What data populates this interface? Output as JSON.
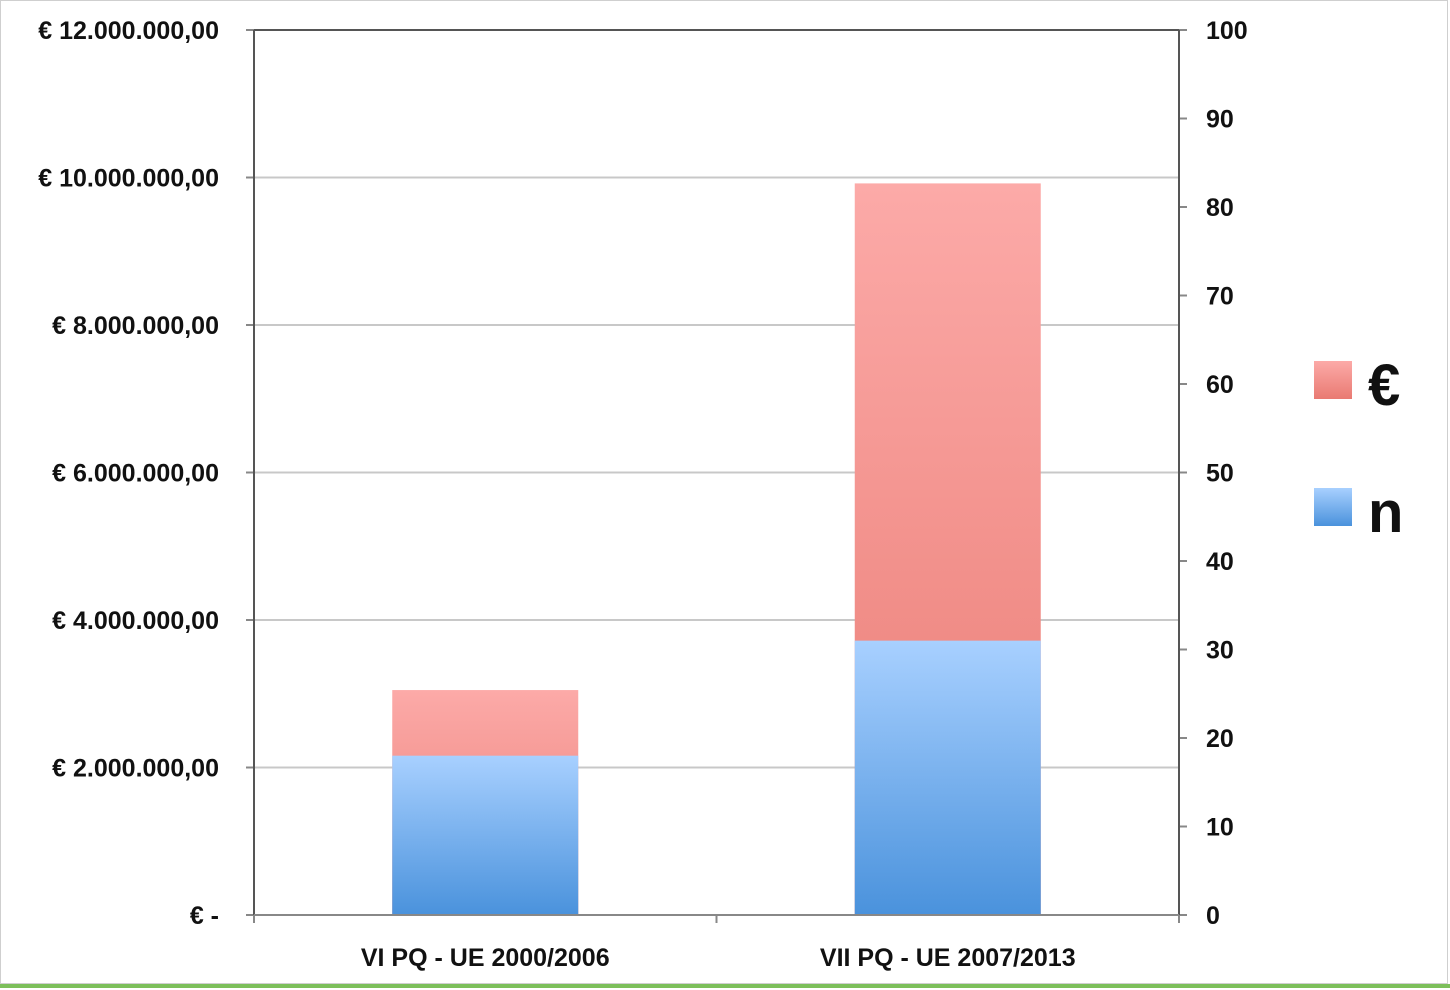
{
  "chart_data": {
    "type": "bar",
    "stacked": true,
    "categories": [
      "VI PQ - UE 2000/2006",
      "VII PQ - UE 2007/2013"
    ],
    "series": [
      {
        "name": "€",
        "axis": "left",
        "values": [
          3050000,
          9920000
        ],
        "color_top": "#fcaaa8",
        "color_bottom": "#e97a72"
      },
      {
        "name": "n",
        "axis": "right",
        "values": [
          18,
          31
        ],
        "color_top": "#a8d0ff",
        "color_bottom": "#4a92dc"
      }
    ],
    "y_left": {
      "min": 0,
      "max": 12000000,
      "ticks": [
        0,
        2000000,
        4000000,
        6000000,
        8000000,
        10000000,
        12000000
      ],
      "tick_labels": [
        "€ -",
        "€ 2.000.000,00",
        "€ 4.000.000,00",
        "€ 6.000.000,00",
        "€ 8.000.000,00",
        "€ 10.000.000,00",
        "€ 12.000.000,00"
      ]
    },
    "y_right": {
      "min": 0,
      "max": 100,
      "ticks": [
        0,
        10,
        20,
        30,
        40,
        50,
        60,
        70,
        80,
        90,
        100
      ],
      "tick_labels": [
        "0",
        "10",
        "20",
        "30",
        "40",
        "50",
        "60",
        "70",
        "80",
        "90",
        "100"
      ]
    },
    "grid": "horizontal lines at left-axis ticks",
    "legend_position": "right",
    "legend": [
      {
        "label": "€",
        "color": "#ef8a84"
      },
      {
        "label": "n",
        "color": "#6aa8ea"
      }
    ],
    "title": "",
    "xlabel": "",
    "ylabel": ""
  }
}
